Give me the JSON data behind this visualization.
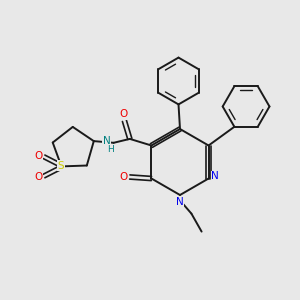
{
  "bg_color": "#e8e8e8",
  "bond_color": "#1a1a1a",
  "N_color": "#0000ee",
  "O_color": "#ee0000",
  "S_color": "#cccc00",
  "NH_color": "#008080",
  "figsize": [
    3.0,
    3.0
  ],
  "dpi": 100,
  "xlim": [
    0,
    10
  ],
  "ylim": [
    0,
    10
  ]
}
